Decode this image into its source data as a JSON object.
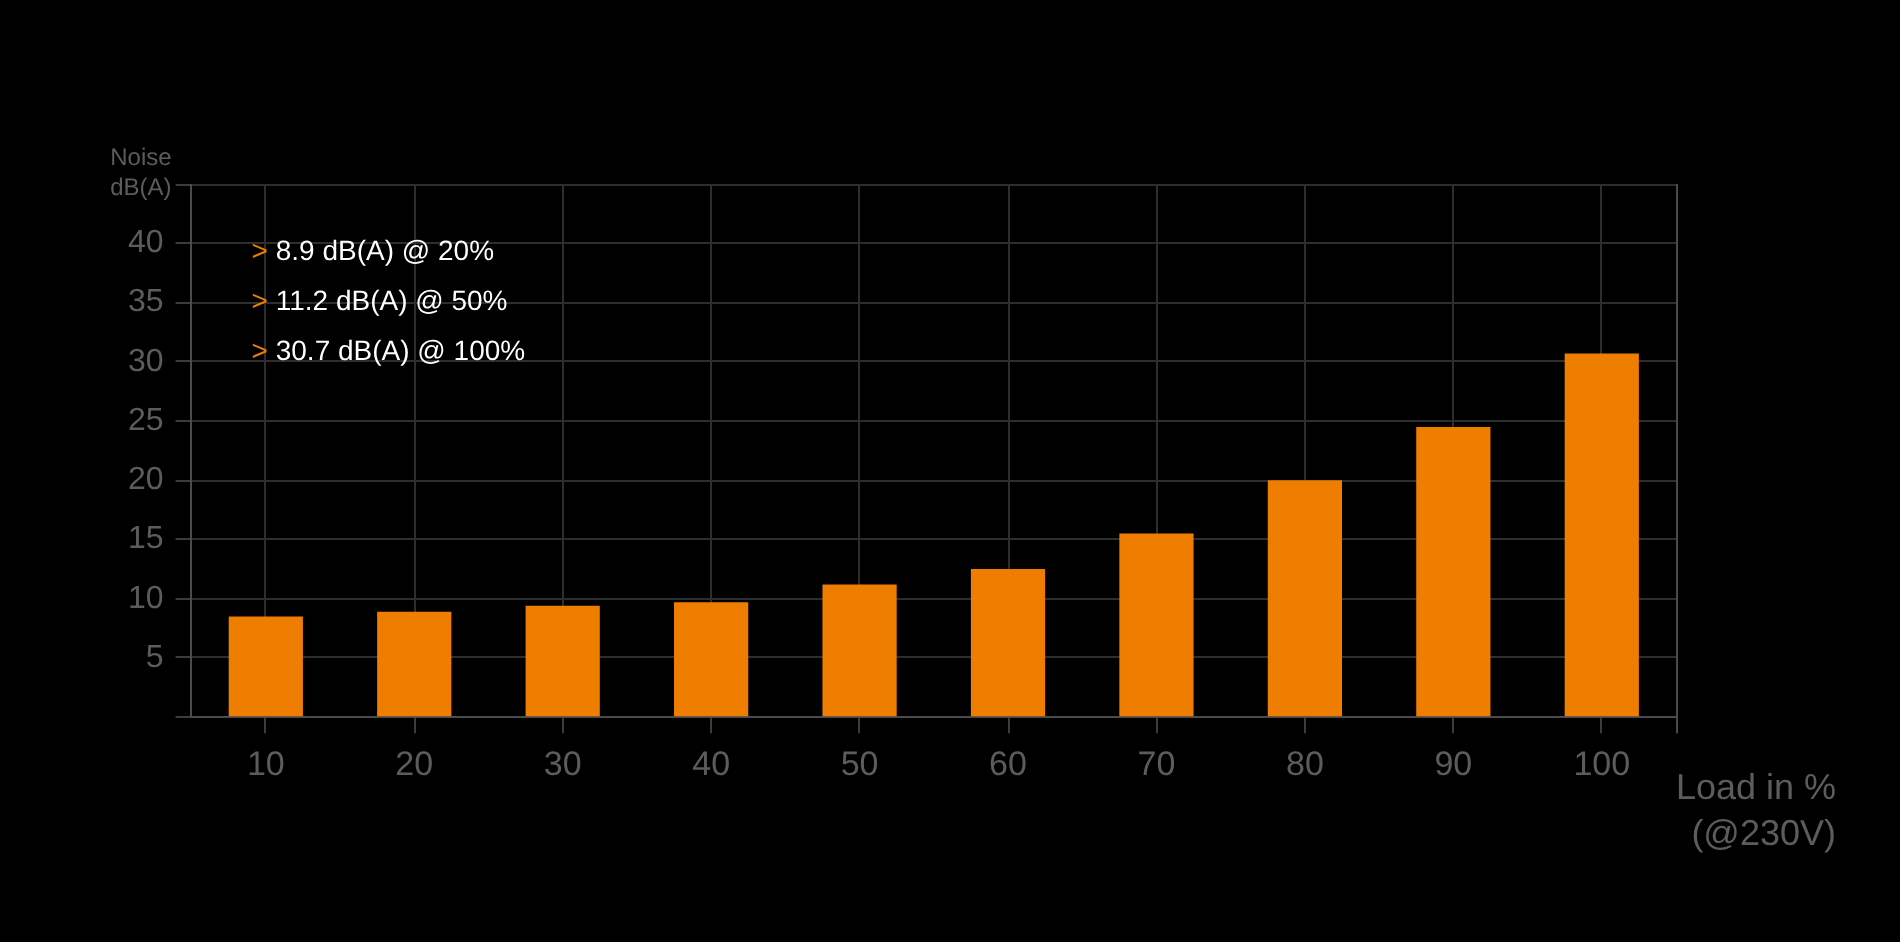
{
  "chart_data": {
    "type": "bar",
    "categories": [
      "10",
      "20",
      "30",
      "40",
      "50",
      "60",
      "70",
      "80",
      "90",
      "100"
    ],
    "values": [
      8.5,
      8.9,
      9.4,
      9.7,
      11.2,
      12.5,
      15.5,
      20,
      24.5,
      30.7
    ],
    "color": "#ef7d00",
    "ylabel": "Noise\ndB(A)",
    "xlabel": "Load in %\n(@230V)",
    "ylim": [
      0,
      45
    ],
    "yticks": [
      {
        "value": 0,
        "label": null
      },
      5,
      10,
      15,
      20,
      25,
      30,
      35,
      40,
      {
        "value": 45,
        "label": null
      }
    ],
    "grid": true,
    "annotations": [
      "> 8.9 dB(A) @ 20%",
      "> 11.2 dB(A) @ 50%",
      "> 30.7 dB(A) @ 100%"
    ]
  }
}
